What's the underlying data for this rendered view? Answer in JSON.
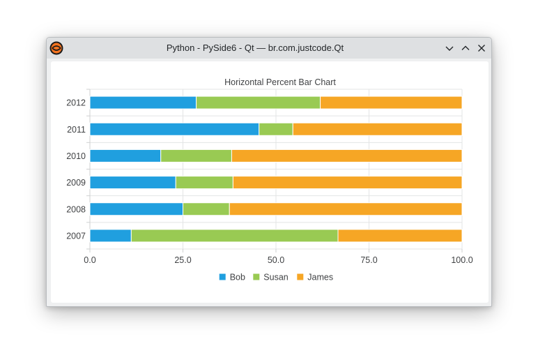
{
  "window": {
    "title": "Python - PySide6 - Qt — br.com.justcode.Qt",
    "icon": "python-logo-icon",
    "controls": [
      "minimize-icon",
      "maximize-icon",
      "close-icon"
    ]
  },
  "chart_data": {
    "type": "bar",
    "orientation": "horizontal",
    "stacked": "percent",
    "title": "Horizontal Percent Bar Chart",
    "categories": [
      "2007",
      "2008",
      "2009",
      "2010",
      "2011",
      "2012"
    ],
    "series": [
      {
        "name": "Bob",
        "color": "#209fdf",
        "values": [
          1,
          2,
          3,
          4,
          5,
          6
        ]
      },
      {
        "name": "Susan",
        "color": "#99ca53",
        "values": [
          5,
          1,
          2,
          4,
          1,
          7
        ]
      },
      {
        "name": "James",
        "color": "#f6a625",
        "values": [
          3,
          5,
          8,
          13,
          5,
          8
        ]
      }
    ],
    "xlim": [
      0,
      100
    ],
    "xticks": [
      "0.0",
      "25.0",
      "50.0",
      "75.0",
      "100.0"
    ],
    "grid": true,
    "legend_position": "bottom"
  }
}
